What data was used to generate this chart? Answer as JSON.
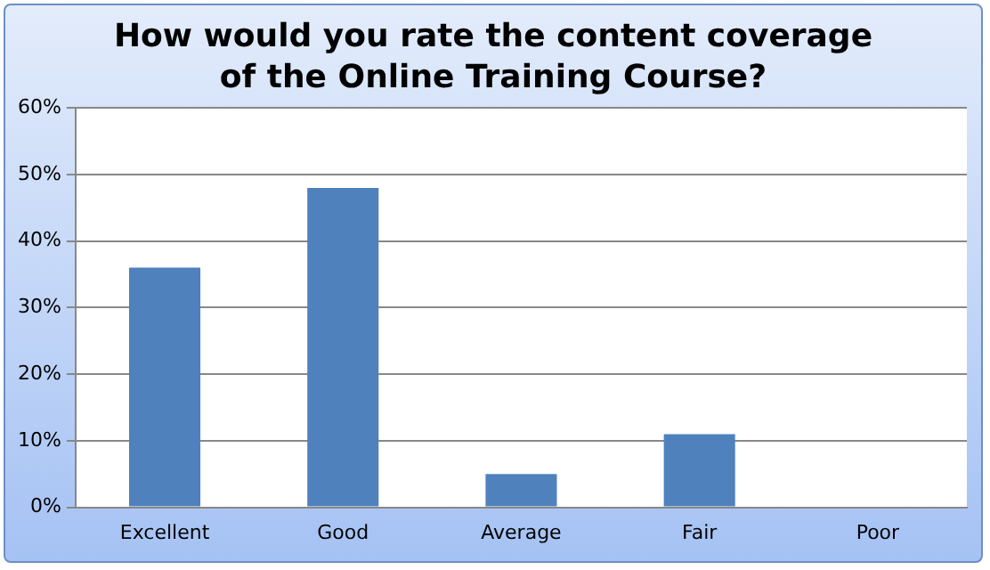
{
  "chart_data": {
    "type": "bar",
    "title": "How would you rate the content coverage\nof the Online Training Course?",
    "categories": [
      "Excellent",
      "Good",
      "Average",
      "Fair",
      "Poor"
    ],
    "values": [
      36,
      48,
      5,
      11,
      0
    ],
    "color": "#4f81bd",
    "ylim": [
      0,
      60
    ],
    "yticks": [
      {
        "value": 0,
        "label": "0%"
      },
      {
        "value": 10,
        "label": "10%"
      },
      {
        "value": 20,
        "label": "20%"
      },
      {
        "value": 30,
        "label": "30%"
      },
      {
        "value": 40,
        "label": "40%"
      },
      {
        "value": 50,
        "label": "50%"
      },
      {
        "value": 60,
        "label": "60%"
      }
    ],
    "grid": "y",
    "legend": false
  }
}
